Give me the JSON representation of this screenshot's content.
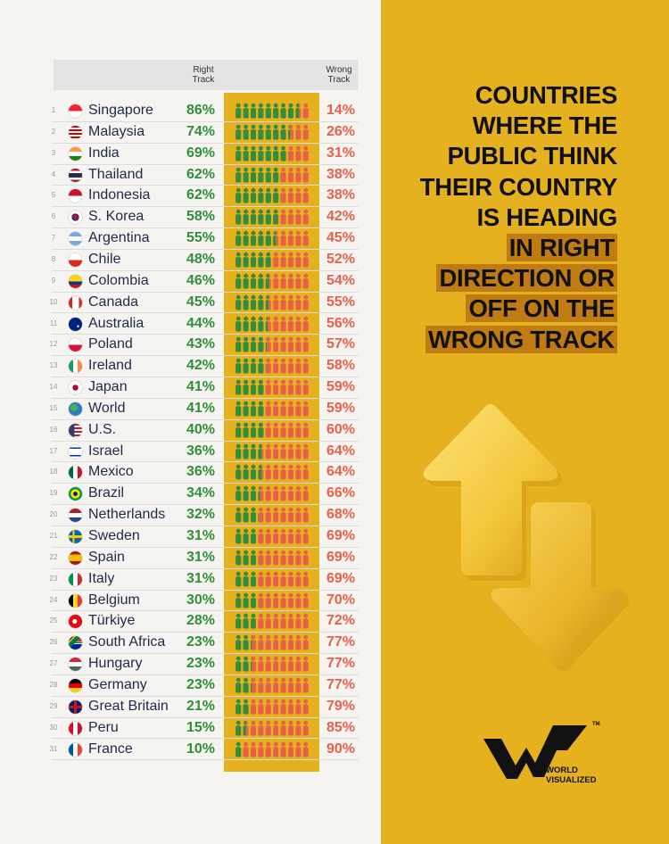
{
  "header": {
    "right_label": "Right Track",
    "wrong_label": "Wrong Track"
  },
  "title": {
    "line1": "COUNTRIES",
    "line2": "WHERE THE",
    "line3": "PUBLIC THINK",
    "line4": "THEIR COUNTRY",
    "line5": "IS HEADING",
    "line6": "IN RIGHT",
    "line7": "DIRECTION OR",
    "line8": "OFF ON THE",
    "line9": "WRONG TRACK"
  },
  "logo": {
    "line1": "WORLD",
    "line2": "VISUALIZED",
    "tm": "TM"
  },
  "colors": {
    "right": "#2f8f3a",
    "wrong": "#e8604a",
    "panel": "#e6b11f",
    "highlight": "#c07b12"
  },
  "chart_data": {
    "type": "table",
    "columns": [
      "Right Track",
      "Wrong Track"
    ],
    "rows": [
      {
        "rank": "1",
        "country": "Singapore",
        "right": 86,
        "wrong": 14,
        "right_label": "86%",
        "wrong_label": "14%"
      },
      {
        "rank": "2",
        "country": "Malaysia",
        "right": 74,
        "wrong": 26,
        "right_label": "74%",
        "wrong_label": "26%"
      },
      {
        "rank": "3",
        "country": "India",
        "right": 69,
        "wrong": 31,
        "right_label": "69%",
        "wrong_label": "31%"
      },
      {
        "rank": "4",
        "country": "Thailand",
        "right": 62,
        "wrong": 38,
        "right_label": "62%",
        "wrong_label": "38%"
      },
      {
        "rank": "5",
        "country": "Indonesia",
        "right": 62,
        "wrong": 38,
        "right_label": "62%",
        "wrong_label": "38%"
      },
      {
        "rank": "6",
        "country": "S. Korea",
        "right": 58,
        "wrong": 42,
        "right_label": "58%",
        "wrong_label": "42%"
      },
      {
        "rank": "7",
        "country": "Argentina",
        "right": 55,
        "wrong": 45,
        "right_label": "55%",
        "wrong_label": "45%"
      },
      {
        "rank": "8",
        "country": "Chile",
        "right": 48,
        "wrong": 52,
        "right_label": "48%",
        "wrong_label": "52%"
      },
      {
        "rank": "9",
        "country": "Colombia",
        "right": 46,
        "wrong": 54,
        "right_label": "46%",
        "wrong_label": "54%"
      },
      {
        "rank": "10",
        "country": "Canada",
        "right": 45,
        "wrong": 55,
        "right_label": "45%",
        "wrong_label": "55%"
      },
      {
        "rank": "11",
        "country": "Australia",
        "right": 44,
        "wrong": 56,
        "right_label": "44%",
        "wrong_label": "56%"
      },
      {
        "rank": "12",
        "country": "Poland",
        "right": 43,
        "wrong": 57,
        "right_label": "43%",
        "wrong_label": "57%"
      },
      {
        "rank": "13",
        "country": "Ireland",
        "right": 42,
        "wrong": 58,
        "right_label": "42%",
        "wrong_label": "58%"
      },
      {
        "rank": "14",
        "country": "Japan",
        "right": 41,
        "wrong": 59,
        "right_label": "41%",
        "wrong_label": "59%"
      },
      {
        "rank": "15",
        "country": "World",
        "right": 41,
        "wrong": 59,
        "right_label": "41%",
        "wrong_label": "59%"
      },
      {
        "rank": "16",
        "country": "U.S.",
        "right": 40,
        "wrong": 60,
        "right_label": "40%",
        "wrong_label": "60%"
      },
      {
        "rank": "17",
        "country": "Israel",
        "right": 36,
        "wrong": 64,
        "right_label": "36%",
        "wrong_label": "64%"
      },
      {
        "rank": "18",
        "country": "Mexico",
        "right": 36,
        "wrong": 64,
        "right_label": "36%",
        "wrong_label": "64%"
      },
      {
        "rank": "19",
        "country": "Brazil",
        "right": 34,
        "wrong": 66,
        "right_label": "34%",
        "wrong_label": "66%"
      },
      {
        "rank": "20",
        "country": "Netherlands",
        "right": 32,
        "wrong": 68,
        "right_label": "32%",
        "wrong_label": "68%"
      },
      {
        "rank": "21",
        "country": "Sweden",
        "right": 31,
        "wrong": 69,
        "right_label": "31%",
        "wrong_label": "69%"
      },
      {
        "rank": "22",
        "country": "Spain",
        "right": 31,
        "wrong": 69,
        "right_label": "31%",
        "wrong_label": "69%"
      },
      {
        "rank": "23",
        "country": "Italy",
        "right": 31,
        "wrong": 69,
        "right_label": "31%",
        "wrong_label": "69%"
      },
      {
        "rank": "24",
        "country": "Belgium",
        "right": 30,
        "wrong": 70,
        "right_label": "30%",
        "wrong_label": "70%"
      },
      {
        "rank": "25",
        "country": "Türkiye",
        "right": 28,
        "wrong": 72,
        "right_label": "28%",
        "wrong_label": "72%"
      },
      {
        "rank": "26",
        "country": "South Africa",
        "right": 23,
        "wrong": 77,
        "right_label": "23%",
        "wrong_label": "77%"
      },
      {
        "rank": "27",
        "country": "Hungary",
        "right": 23,
        "wrong": 77,
        "right_label": "23%",
        "wrong_label": "77%"
      },
      {
        "rank": "28",
        "country": "Germany",
        "right": 23,
        "wrong": 77,
        "right_label": "23%",
        "wrong_label": "77%"
      },
      {
        "rank": "29",
        "country": "Great Britain",
        "right": 21,
        "wrong": 79,
        "right_label": "21%",
        "wrong_label": "79%"
      },
      {
        "rank": "30",
        "country": "Peru",
        "right": 15,
        "wrong": 85,
        "right_label": "15%",
        "wrong_label": "85%"
      },
      {
        "rank": "31",
        "country": "France",
        "right": 10,
        "wrong": 90,
        "right_label": "10%",
        "wrong_label": "90%"
      }
    ]
  }
}
